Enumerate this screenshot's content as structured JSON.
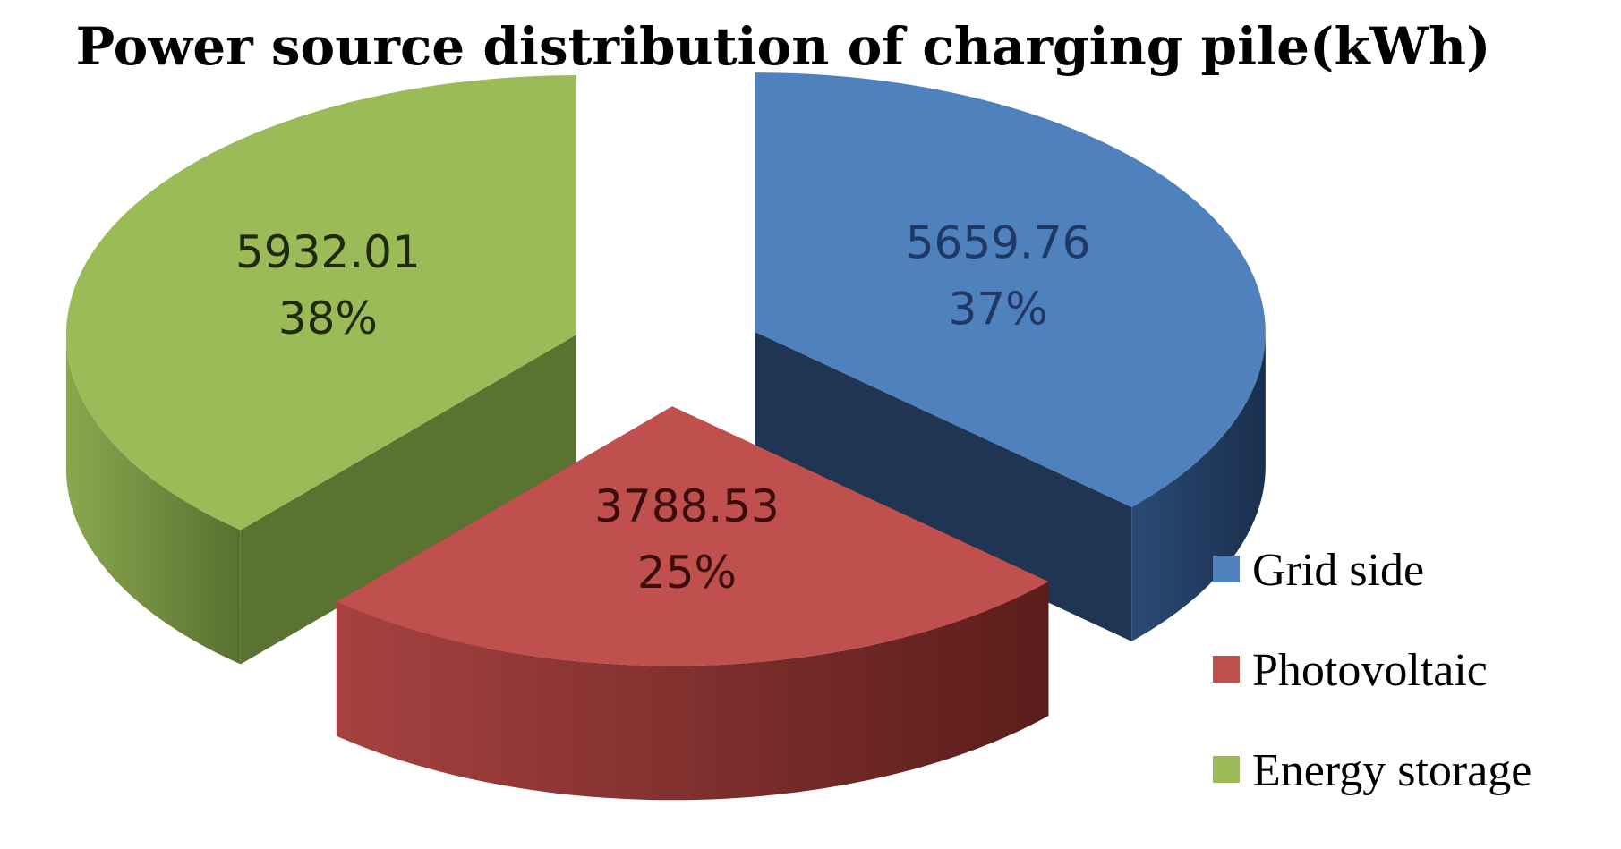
{
  "chart_data": {
    "type": "pie",
    "style": "3d-exploded",
    "title": "Power source distribution of charging pile(kWh)",
    "legend_position": "bottom-right",
    "slices": [
      {
        "name": "Grid side",
        "value": 5659.76,
        "value_label": "5659.76",
        "percent": 37,
        "percent_label": "37%",
        "color": "#4f81bd",
        "side_color": "#1f3553",
        "label_color": "#1f3864"
      },
      {
        "name": "Photovoltaic",
        "value": 3788.53,
        "value_label": "3788.53",
        "percent": 25,
        "percent_label": "25%",
        "color": "#c0504d",
        "side_color": "#6b2624",
        "label_color": "#3b0d0c"
      },
      {
        "name": "Energy storage",
        "value": 5932.01,
        "value_label": "5932.01",
        "percent": 38,
        "percent_label": "38%",
        "color": "#9bbb59",
        "side_color": "#5b7330",
        "label_color": "#1f2a0d"
      }
    ]
  }
}
